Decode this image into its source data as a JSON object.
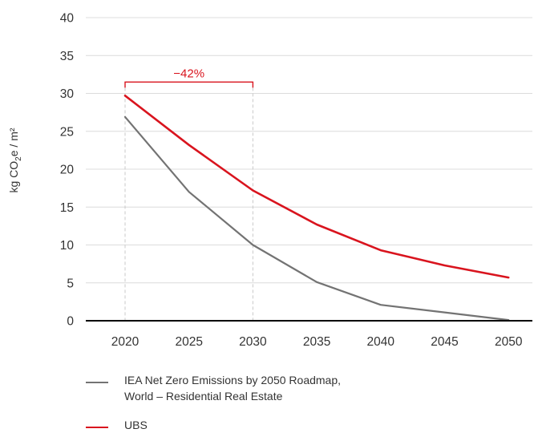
{
  "chart_data": {
    "type": "line",
    "x": [
      2020,
      2025,
      2030,
      2035,
      2040,
      2045,
      2050
    ],
    "series": [
      {
        "name": "IEA Net Zero Emissions by 2050 Roadmap,\nWorld – Residential Real Estate",
        "color": "#737373",
        "values": [
          26.9,
          17.0,
          10.0,
          5.1,
          2.1,
          1.1,
          0.1
        ]
      },
      {
        "name": "UBS",
        "color": "#d9141e",
        "values": [
          29.7,
          23.2,
          17.2,
          12.7,
          9.3,
          7.3,
          5.7
        ]
      }
    ],
    "ylim": [
      0,
      40
    ],
    "yticks": [
      0,
      5,
      10,
      15,
      20,
      25,
      30,
      35,
      40
    ],
    "ylabel": {
      "pre": "kg CO",
      "sub": "2",
      "post": "e / m²"
    },
    "xlabel": "",
    "grid": true,
    "legend_position": "bottom",
    "annotation": {
      "text": "−42%",
      "from_x": 2020,
      "to_x": 2030,
      "y": 31.5,
      "color": "#d9141e"
    }
  }
}
